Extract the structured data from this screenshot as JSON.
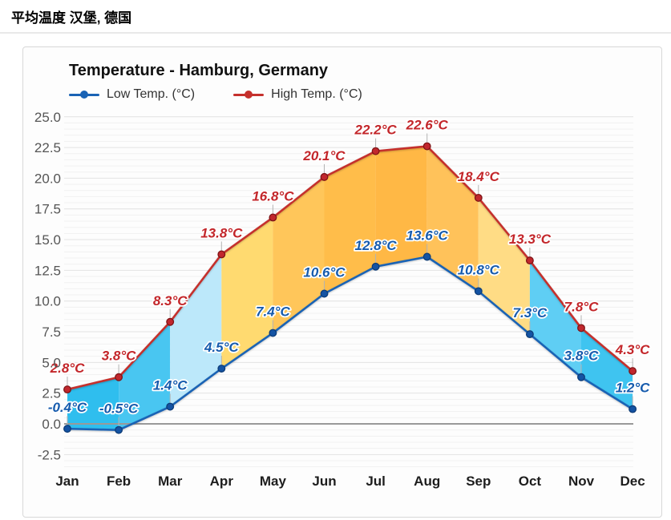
{
  "page": {
    "header_title": "平均温度 汉堡, 德国"
  },
  "chart": {
    "title": "Temperature - Hamburg, Germany",
    "legend": [
      {
        "label": "Low Temp. (°C)",
        "color": "#1a63b5"
      },
      {
        "label": "High Temp. (°C)",
        "color": "#c5302c"
      }
    ]
  },
  "chart_data": {
    "type": "line",
    "title": "Temperature - Hamburg, Germany",
    "categories": [
      "Jan",
      "Feb",
      "Mar",
      "Apr",
      "May",
      "Jun",
      "Jul",
      "Aug",
      "Sep",
      "Oct",
      "Nov",
      "Dec"
    ],
    "series": [
      {
        "name": "Low Temp. (°C)",
        "values": [
          -0.4,
          -0.5,
          1.4,
          4.5,
          7.4,
          10.6,
          12.8,
          13.6,
          10.8,
          7.3,
          3.8,
          1.2
        ],
        "line_color": "#1a63b5",
        "dot_color": "#1453a3",
        "dot_edge_color": "#0d3c77",
        "label_color": "#165bad"
      },
      {
        "name": "High Temp. (°C)",
        "values": [
          2.8,
          3.8,
          8.3,
          13.8,
          16.8,
          20.1,
          22.2,
          22.6,
          18.4,
          13.3,
          7.8,
          4.3
        ],
        "line_color": "#c5302c",
        "dot_color": "#c1272d",
        "dot_edge_color": "#7e1416",
        "label_color": "#c3262a"
      }
    ],
    "unit": "°C",
    "label_suffix": "°C",
    "band_colors_between_series": [
      "#2fbeee",
      "#49c6f1",
      "#bce8fa",
      "#ffda70",
      "#ffc65a",
      "#ffbd4a",
      "#ffb845",
      "#ffc25a",
      "#ffdc85",
      "#5fcef4",
      "#3fc4f0"
    ],
    "y_ticks": [
      "25.0",
      "22.5",
      "20.0",
      "17.5",
      "15.0",
      "12.5",
      "10.0",
      "7.5",
      "5.0",
      "2.5",
      "0.0",
      "-2.5"
    ],
    "y_tick_values": [
      25.0,
      22.5,
      20.0,
      17.5,
      15.0,
      12.5,
      10.0,
      7.5,
      5.0,
      2.5,
      0.0,
      -2.5
    ],
    "ylim": [
      -2.5,
      25.0
    ],
    "grid": {
      "horizontal": true,
      "minor_step": 0.5,
      "major_step": 2.5,
      "zero_line": true
    },
    "legend_position": "top-left",
    "xlabel": "",
    "ylabel": ""
  }
}
